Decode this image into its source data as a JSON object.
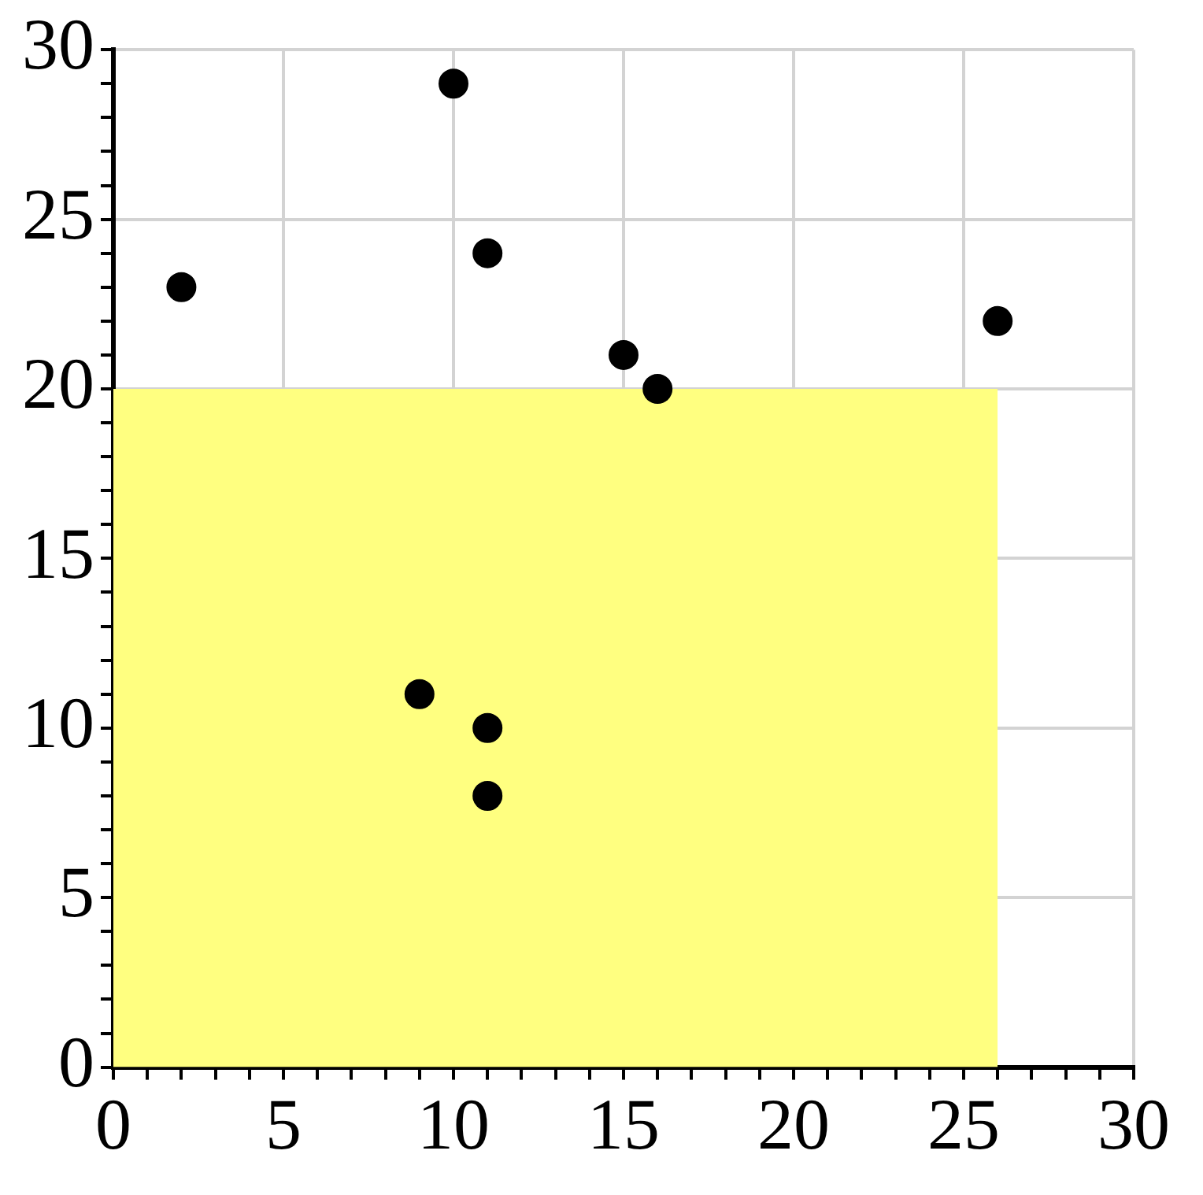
{
  "chart_data": {
    "type": "scatter",
    "xlim": [
      0,
      30
    ],
    "ylim": [
      0,
      30
    ],
    "xticks": [
      0,
      {
        "value": 1,
        "label": null
      },
      {
        "value": 2,
        "label": null
      },
      {
        "value": 3,
        "label": null
      },
      {
        "value": 4,
        "label": null
      },
      5,
      {
        "value": 6,
        "label": null
      },
      {
        "value": 7,
        "label": null
      },
      {
        "value": 8,
        "label": null
      },
      {
        "value": 9,
        "label": null
      },
      10,
      {
        "value": 11,
        "label": null
      },
      {
        "value": 12,
        "label": null
      },
      {
        "value": 13,
        "label": null
      },
      {
        "value": 14,
        "label": null
      },
      15,
      {
        "value": 16,
        "label": null
      },
      {
        "value": 17,
        "label": null
      },
      {
        "value": 18,
        "label": null
      },
      {
        "value": 19,
        "label": null
      },
      20,
      {
        "value": 21,
        "label": null
      },
      {
        "value": 22,
        "label": null
      },
      {
        "value": 23,
        "label": null
      },
      {
        "value": 24,
        "label": null
      },
      25,
      {
        "value": 26,
        "label": null
      },
      {
        "value": 27,
        "label": null
      },
      {
        "value": 28,
        "label": null
      },
      {
        "value": 29,
        "label": null
      },
      30
    ],
    "yticks": [
      0,
      {
        "value": 1,
        "label": null
      },
      {
        "value": 2,
        "label": null
      },
      {
        "value": 3,
        "label": null
      },
      {
        "value": 4,
        "label": null
      },
      5,
      {
        "value": 6,
        "label": null
      },
      {
        "value": 7,
        "label": null
      },
      {
        "value": 8,
        "label": null
      },
      {
        "value": 9,
        "label": null
      },
      10,
      {
        "value": 11,
        "label": null
      },
      {
        "value": 12,
        "label": null
      },
      {
        "value": 13,
        "label": null
      },
      {
        "value": 14,
        "label": null
      },
      15,
      {
        "value": 16,
        "label": null
      },
      {
        "value": 17,
        "label": null
      },
      {
        "value": 18,
        "label": null
      },
      {
        "value": 19,
        "label": null
      },
      20,
      {
        "value": 21,
        "label": null
      },
      {
        "value": 22,
        "label": null
      },
      {
        "value": 23,
        "label": null
      },
      {
        "value": 24,
        "label": null
      },
      25,
      {
        "value": 26,
        "label": null
      },
      {
        "value": 27,
        "label": null
      },
      {
        "value": 28,
        "label": null
      },
      {
        "value": 29,
        "label": null
      },
      30
    ],
    "grid": true,
    "legend": false,
    "series": [
      {
        "type": "area",
        "color": "#ffff80",
        "x": [
          0,
          26
        ],
        "values": [
          20,
          20
        ]
      },
      {
        "color": "#000000",
        "marker": "circle",
        "x": [
          2,
          10,
          11,
          15,
          16,
          26,
          9,
          11,
          11
        ],
        "values": [
          23,
          29,
          24,
          21,
          20,
          22,
          11,
          10,
          8
        ]
      }
    ]
  }
}
